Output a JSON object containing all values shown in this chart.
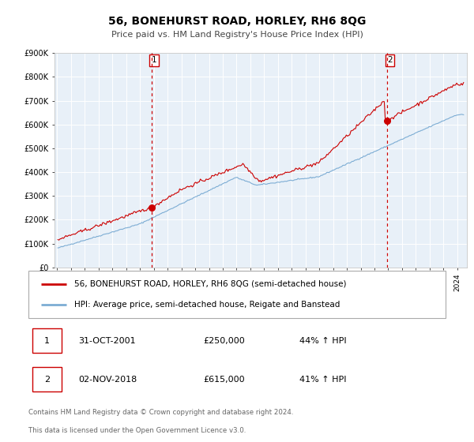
{
  "title": "56, BONEHURST ROAD, HORLEY, RH6 8QG",
  "subtitle": "Price paid vs. HM Land Registry's House Price Index (HPI)",
  "legend_line1": "56, BONEHURST ROAD, HORLEY, RH6 8QG (semi-detached house)",
  "legend_line2": "HPI: Average price, semi-detached house, Reigate and Banstead",
  "sale1_date": "31-OCT-2001",
  "sale1_price": 250000,
  "sale1_hpi": "44% ↑ HPI",
  "sale1_label": "1",
  "sale2_date": "02-NOV-2018",
  "sale2_price": 615000,
  "sale2_hpi": "41% ↑ HPI",
  "sale2_label": "2",
  "footer1": "Contains HM Land Registry data © Crown copyright and database right 2024.",
  "footer2": "This data is licensed under the Open Government Licence v3.0.",
  "red_color": "#cc0000",
  "blue_color": "#7dadd4",
  "bg_color": "#ffffff",
  "plot_bg": "#e8f0f8",
  "grid_color": "#ffffff",
  "vline_color": "#cc0000",
  "box_color": "#cc0000",
  "ylim": [
    0,
    900000
  ],
  "yticks": [
    0,
    100000,
    200000,
    300000,
    400000,
    500000,
    600000,
    700000,
    800000,
    900000
  ],
  "ytick_labels": [
    "£0",
    "£100K",
    "£200K",
    "£300K",
    "£400K",
    "£500K",
    "£600K",
    "£700K",
    "£800K",
    "£900K"
  ],
  "xstart_year": 1995,
  "xend_year": 2024
}
